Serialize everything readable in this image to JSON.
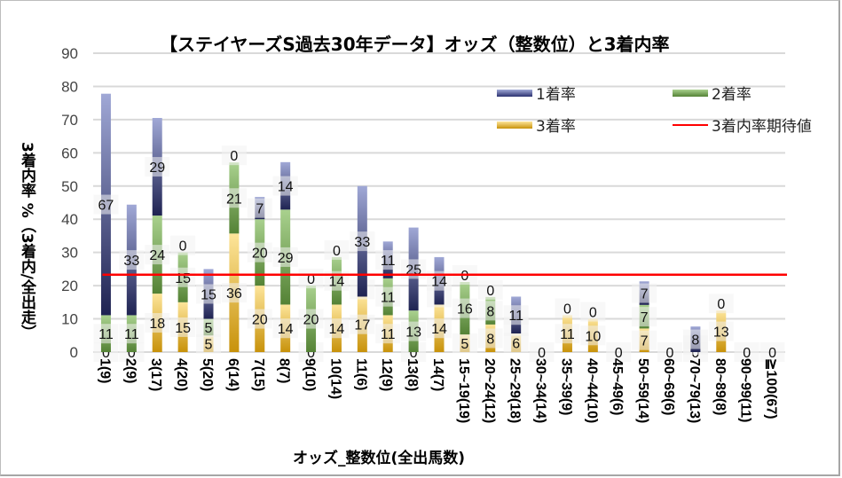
{
  "chart_data": {
    "type": "bar",
    "stacked": true,
    "title": "【ステイヤーズS過去30年データ】オッズ（整数位）と3着内率",
    "xlabel": "オッズ_整数位(全出馬数)",
    "ylabel": "3着内率 %（3着内/全出走）",
    "ylim": [
      0,
      90
    ],
    "yticks": [
      0,
      10,
      20,
      30,
      40,
      50,
      60,
      70,
      80,
      90
    ],
    "grid": true,
    "legend_position": "top-right",
    "categories": [
      "1(9)",
      "2(9)",
      "3(17)",
      "4(20)",
      "5(20)",
      "6(14)",
      "7(15)",
      "8(7)",
      "9(10)",
      "10(14)",
      "11(6)",
      "12(9)",
      "13(8)",
      "14(7)",
      "15~19(19)",
      "20~24(12)",
      "25~29(18)",
      "30~34(14)",
      "35~39(9)",
      "40~44(10)",
      "45~49(6)",
      "50~59(14)",
      "60~69(6)",
      "70~79(13)",
      "80~89(8)",
      "90~99(11)",
      "≧100(67)"
    ],
    "series": [
      {
        "name": "3着率",
        "color_light": "#fde59a",
        "color_dark": "#c8920a",
        "values": [
          0,
          0,
          17.6,
          15,
          5,
          35.7,
          20,
          14.3,
          0,
          14.3,
          16.7,
          11.1,
          0,
          14.3,
          5.3,
          8.3,
          5.6,
          0,
          11.1,
          10,
          0,
          7.1,
          0,
          0,
          12.5,
          0,
          0
        ],
        "labels": [
          "0",
          "0",
          "18",
          "15",
          "5",
          "36",
          "20",
          "14",
          "0",
          "14",
          "17",
          "11",
          "0",
          "14",
          "5",
          "8",
          "6",
          "0",
          "11",
          "10",
          "0",
          "7",
          "0",
          "0",
          "13",
          "0",
          "0"
        ]
      },
      {
        "name": "2着率",
        "color_light": "#a9d18e",
        "color_dark": "#548235",
        "values": [
          11.1,
          11.1,
          23.5,
          15,
          5,
          21.4,
          20,
          28.6,
          20,
          14.3,
          0,
          11.1,
          12.5,
          0,
          15.8,
          8.3,
          0,
          0,
          0,
          0,
          0,
          7.1,
          0,
          0,
          0,
          0,
          0
        ],
        "labels": [
          "11",
          "11",
          "24",
          "15",
          "5",
          "21",
          "20",
          "29",
          "20",
          "14",
          "0",
          "11",
          "13",
          "0",
          "16",
          "8",
          "0",
          "",
          "",
          "",
          "",
          "7",
          "",
          "0",
          "",
          "",
          ""
        ]
      },
      {
        "name": "1着率",
        "color_light": "#a0a8d6",
        "color_dark": "#1f2352",
        "values": [
          66.7,
          33.3,
          29.4,
          0,
          15,
          0,
          6.7,
          14.3,
          0,
          0,
          33.3,
          11.1,
          25,
          14.3,
          0,
          0,
          11.1,
          0,
          0,
          0,
          0,
          7.1,
          0,
          7.7,
          0,
          0,
          0
        ],
        "labels": [
          "67",
          "33",
          "29",
          "0",
          "15",
          "0",
          "7",
          "14",
          "0",
          "0",
          "33",
          "11",
          "25",
          "14",
          "0",
          "0",
          "11",
          "",
          "0",
          "0",
          "",
          "7",
          "",
          "8",
          "0",
          "",
          ""
        ]
      }
    ],
    "reference_line": {
      "name": "3着内率期待値",
      "value": 23.3,
      "color": "#ff0000"
    }
  },
  "legend": {
    "items": [
      {
        "label": "1着率"
      },
      {
        "label": "2着率"
      },
      {
        "label": "3着率"
      },
      {
        "label": "3着内率期待値"
      }
    ]
  }
}
